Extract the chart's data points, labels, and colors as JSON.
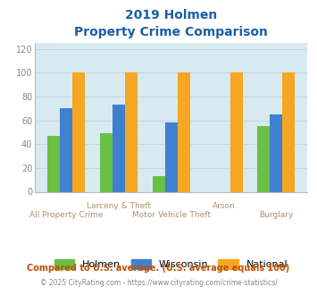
{
  "title_line1": "2019 Holmen",
  "title_line2": "Property Crime Comparison",
  "categories": [
    "All Property Crime",
    "Larceny & Theft",
    "Motor Vehicle Theft",
    "Arson",
    "Burglary"
  ],
  "xtick_top": [
    "",
    "Larceny & Theft",
    "",
    "Arson",
    ""
  ],
  "xtick_bottom": [
    "All Property Crime",
    "",
    "Motor Vehicle Theft",
    "",
    "Burglary"
  ],
  "holmen": [
    47,
    49,
    13,
    0,
    55
  ],
  "wisconsin": [
    70,
    73,
    58,
    0,
    65
  ],
  "national": [
    100,
    100,
    100,
    100,
    100
  ],
  "holmen_color": "#6abf45",
  "wisconsin_color": "#4080d0",
  "national_color": "#f5a623",
  "bg_color": "#d8eaf0",
  "title_color": "#1a5fa8",
  "ylabel_values": [
    0,
    20,
    40,
    60,
    80,
    100,
    120
  ],
  "ylim": [
    0,
    125
  ],
  "footnote1": "Compared to U.S. average. (U.S. average equals 100)",
  "footnote2": "© 2025 CityRating.com - https://www.cityrating.com/crime-statistics/",
  "footnote1_color": "#c05000",
  "footnote2_color": "#888888",
  "grid_color": "#c5d8e0",
  "legend_labels": [
    "Holmen",
    "Wisconsin",
    "National"
  ]
}
